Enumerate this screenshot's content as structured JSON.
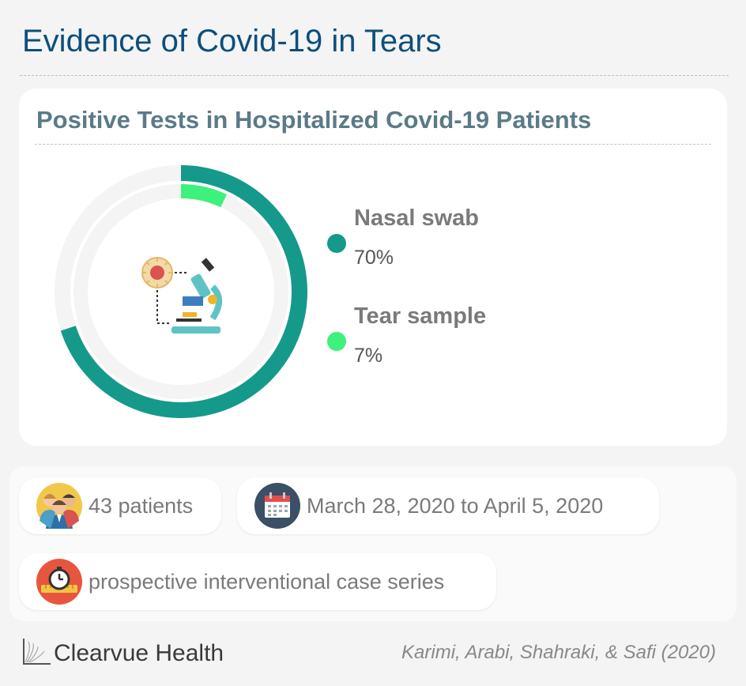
{
  "header": {
    "title": "Evidence of Covid-19 in Tears"
  },
  "chart_data": {
    "type": "pie",
    "title": "Positive Tests in Hospitalized Covid-19 Patients",
    "series": [
      {
        "name": "Nasal swab",
        "value": 70,
        "label": "70%",
        "color": "#15998a"
      },
      {
        "name": "Tear sample",
        "value": 7,
        "label": "7%",
        "color": "#3ef07c"
      }
    ],
    "track_color": "#f4f4f4",
    "center_icon": "microscope-virus-icon",
    "legend_position": "right"
  },
  "info": {
    "patients": {
      "icon": "patients-icon",
      "text": "43 patients"
    },
    "dates": {
      "icon": "calendar-icon",
      "text": "March 28, 2020 to April 5, 2020"
    },
    "study": {
      "icon": "stopwatch-ruler-icon",
      "text": "prospective interventional case series"
    }
  },
  "footer": {
    "brand": "Clearvue Health",
    "brand_icon": "clearvue-logo-icon",
    "citation": "Karimi, Arabi, Shahraki, & Safi (2020)"
  }
}
